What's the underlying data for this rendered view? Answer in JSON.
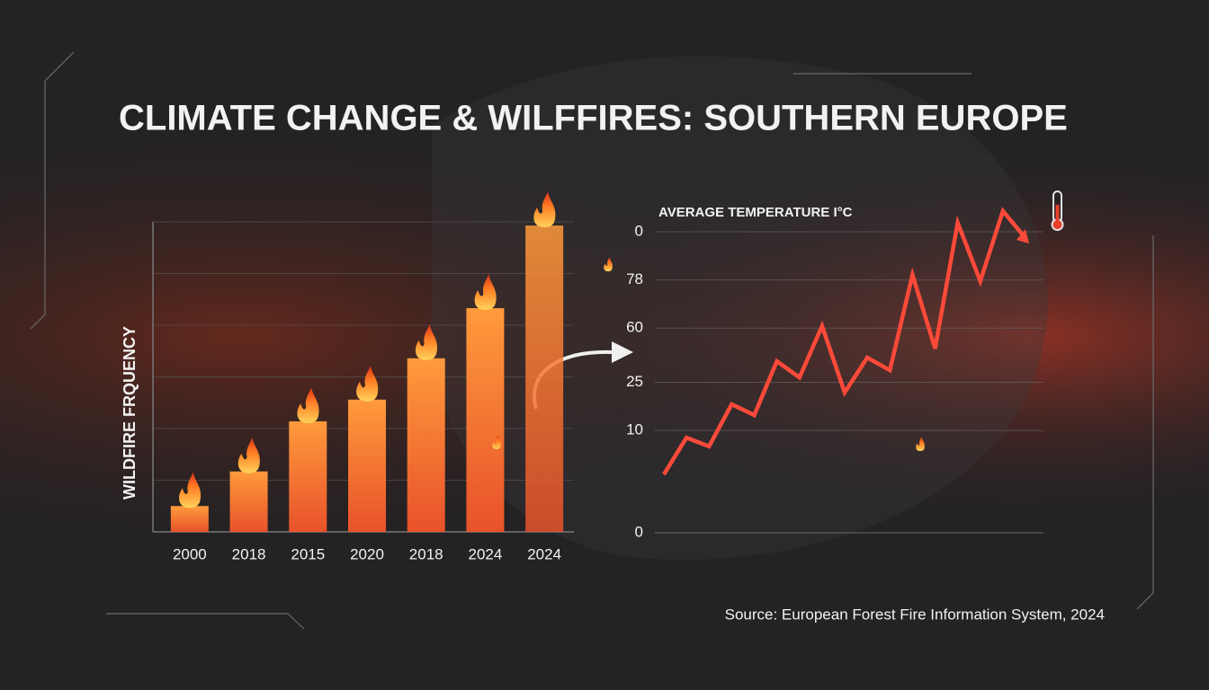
{
  "title": "CLIMATE CHANGE & WILFFIRES: SOUTHERN EUROPE",
  "source": "Source: European Forest Fire Information System, 2024",
  "chart_data": [
    {
      "type": "bar",
      "ylabel": "WILDFIRE FRQUENCY",
      "categories": [
        "2000",
        "2018",
        "2015",
        "2020",
        "2018",
        "2024",
        "2024"
      ],
      "values": [
        0.5,
        1.17,
        2.14,
        2.56,
        3.36,
        4.33,
        5.93
      ],
      "color": "#f26a2e",
      "ylim": [
        0,
        6
      ],
      "grid": true
    },
    {
      "type": "line",
      "ylabel": "AVERAGE TEMPERATURE I°C",
      "values": [
        19.4,
        31.6,
        28.7,
        42.7,
        39.1,
        57.0,
        51.6,
        68.7,
        46.6,
        58.2,
        54.0,
        85.7,
        61.2,
        103.0,
        83.6,
        106.9,
        97.9
      ],
      "color": "#ff4a3a",
      "ylim": [
        0,
        110
      ],
      "yticks": [
        0,
        {
          "value": 34,
          "label": "10"
        },
        {
          "value": 50,
          "label": "25"
        },
        {
          "value": 68,
          "label": "60"
        },
        {
          "value": 84,
          "label": "78"
        },
        {
          "value": 100,
          "label": "0"
        }
      ],
      "grid": true
    }
  ]
}
